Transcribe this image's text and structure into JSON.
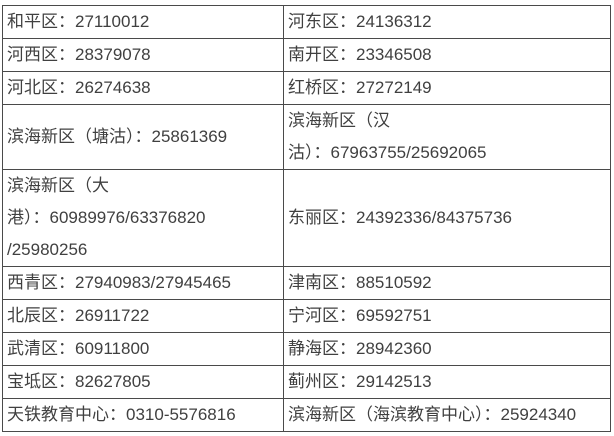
{
  "colors": {
    "background": "#ffffff",
    "text": "#404040",
    "border": "#4a4a4a"
  },
  "table": {
    "rows": [
      {
        "left": "和平区：27110012",
        "right": "河东区：24136312"
      },
      {
        "left": "河西区：28379078",
        "right": "南开区：23346508"
      },
      {
        "left": "河北区：26274638",
        "right": "红桥区：27272149"
      },
      {
        "left": "滨海新区（塘沽）：25861369",
        "right": "滨海新区（汉\n沽）：67963755/25692065"
      },
      {
        "left": "滨海新区（大\n港）：60989976/63376820\n/25980256",
        "right": "东丽区：24392336/84375736"
      },
      {
        "left": "西青区：27940983/27945465",
        "right": "津南区：88510592"
      },
      {
        "left": "北辰区：26911722",
        "right": "宁河区：69592751"
      },
      {
        "left": "武清区：60911800",
        "right": "静海区：28942360"
      },
      {
        "left": "宝坻区：82627805",
        "right": "蓟州区：29142513"
      },
      {
        "left": "天铁教育中心：0310-5576816",
        "right": "滨海新区（海滨教育中心）：25924340"
      }
    ]
  }
}
